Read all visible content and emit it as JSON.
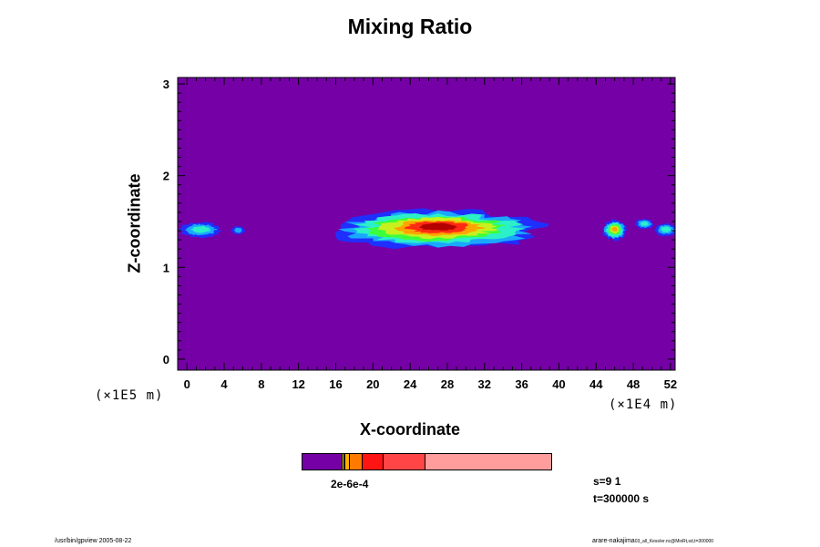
{
  "chart_data": {
    "type": "heatmap",
    "title": "Mixing Ratio",
    "xlabel": "X-coordinate",
    "ylabel": "Z-coordinate",
    "x_unit": "(×1E4 m)",
    "y_unit": "(×1E5 m)",
    "xlim": [
      -1,
      52.5
    ],
    "ylim": [
      -0.12,
      3.07
    ],
    "x_ticks": [
      "0",
      "4",
      "8",
      "12",
      "16",
      "20",
      "24",
      "28",
      "32",
      "36",
      "40",
      "44",
      "48",
      "52"
    ],
    "y_ticks": [
      "0",
      "1",
      "2",
      "3"
    ],
    "background_color": "#7400a6",
    "colors": [
      "#7400a6",
      "#1f2fff",
      "#1aa8ff",
      "#2bf0c8",
      "#3cff3c",
      "#c8f01e",
      "#ffa400",
      "#ff2a14",
      "#b40000"
    ],
    "plumes": [
      {
        "x": 1.5,
        "z": 1.42,
        "rx": 2.2,
        "rz": 0.085,
        "peak": 3
      },
      {
        "x": 5.5,
        "z": 1.41,
        "rx": 0.7,
        "rz": 0.045,
        "peak": 2
      },
      {
        "x": 27,
        "z": 1.44,
        "rx": 11.2,
        "rz": 0.21,
        "peak": 8
      },
      {
        "x": 46,
        "z": 1.42,
        "rx": 1.3,
        "rz": 0.11,
        "peak": 6
      },
      {
        "x": 49.2,
        "z": 1.48,
        "rx": 1.0,
        "rz": 0.055,
        "peak": 3
      },
      {
        "x": 51.5,
        "z": 1.42,
        "rx": 1.2,
        "rz": 0.07,
        "peak": 3
      }
    ],
    "colorbar": {
      "segments": [
        {
          "color": "#7400a6",
          "fraction": 0.163
        },
        {
          "color": "#ffd400",
          "fraction": 0.007
        },
        {
          "color": "#000000",
          "fraction": 0.004
        },
        {
          "color": "#ffb000",
          "fraction": 0.018
        },
        {
          "color": "#ff7a00",
          "fraction": 0.05
        },
        {
          "color": "#ff1414",
          "fraction": 0.085
        },
        {
          "color": "#ff4545",
          "fraction": 0.167
        },
        {
          "color": "#ff9d9d",
          "fraction": 0.506
        }
      ],
      "label": "2e-6e-4"
    }
  },
  "info": {
    "s_line": "s=9 1",
    "t_line": "t=300000 s"
  },
  "footer": {
    "left": "/usr/bin/gpview 2005-08-22",
    "right_main": "arare-nakajima",
    "right_small": "03_all_KessIer.nc@MixRt,sd,t=300000"
  }
}
